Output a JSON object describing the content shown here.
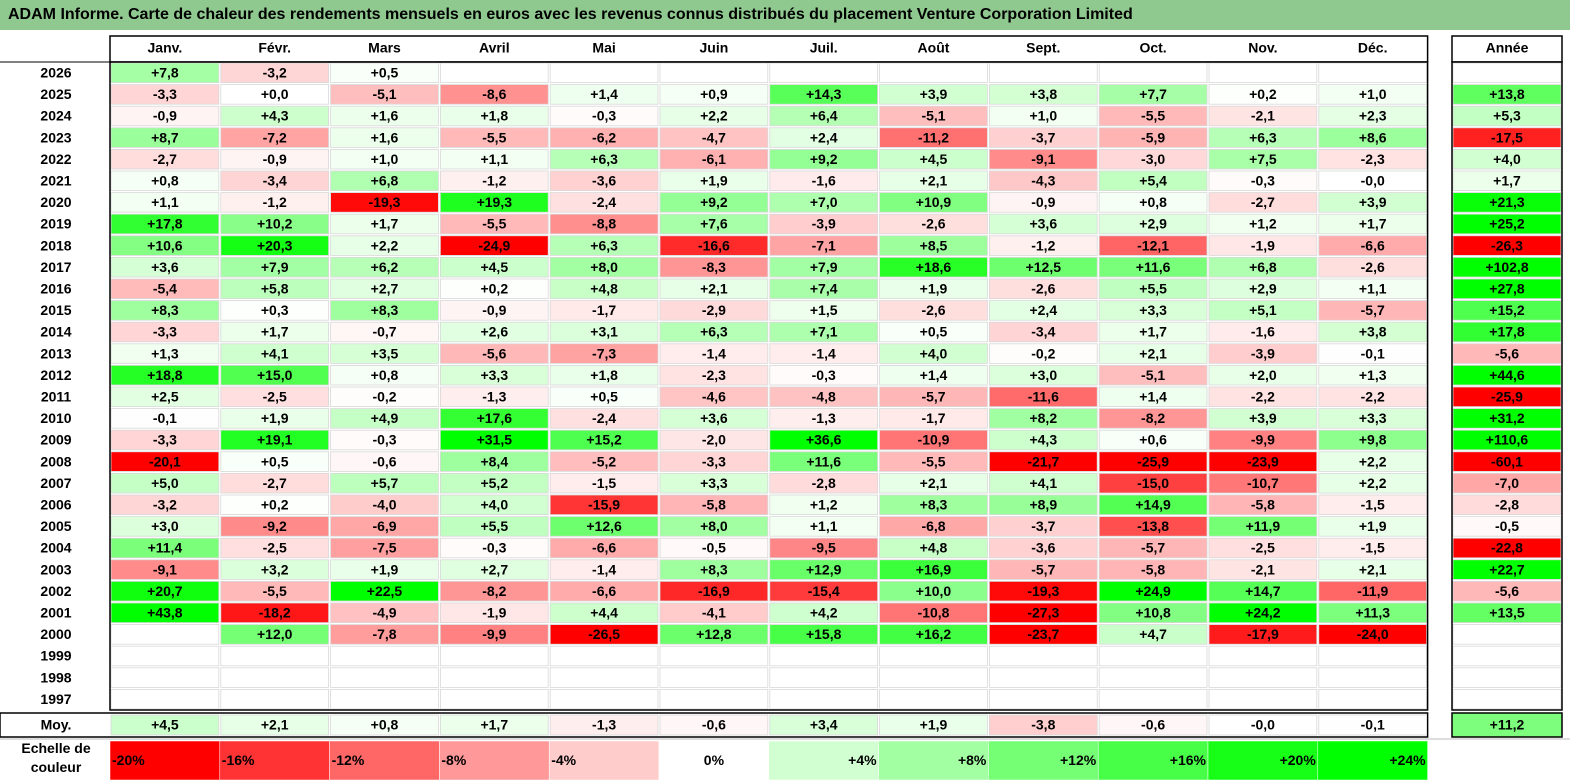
{
  "title": "ADAM Informe. Carte de chaleur des rendements mensuels en euros avec les revenus connus distribués du placement Venture Corporation Limited",
  "chart_data": {
    "type": "heatmap",
    "months": [
      "Janv.",
      "Févr.",
      "Mars",
      "Avril",
      "Mai",
      "Juin",
      "Juil.",
      "Août",
      "Sept.",
      "Oct.",
      "Nov.",
      "Déc."
    ],
    "year_header": "Année",
    "avg_label": "Moy.",
    "scale_label": "Echelle de couleur",
    "rows": [
      {
        "year": "2026",
        "values": [
          7.8,
          -3.2,
          0.5,
          null,
          null,
          null,
          null,
          null,
          null,
          null,
          null,
          null
        ],
        "total": null
      },
      {
        "year": "2025",
        "values": [
          -3.3,
          0.0,
          -5.1,
          -8.6,
          1.4,
          0.9,
          14.3,
          3.9,
          3.8,
          7.7,
          0.2,
          1.0
        ],
        "total": 13.8
      },
      {
        "year": "2024",
        "values": [
          -0.9,
          4.3,
          1.6,
          1.8,
          -0.3,
          2.2,
          6.4,
          -5.1,
          1.0,
          -5.5,
          -2.1,
          2.3
        ],
        "total": 5.3
      },
      {
        "year": "2023",
        "values": [
          8.7,
          -7.2,
          1.6,
          -5.5,
          -6.2,
          -4.7,
          2.4,
          -11.2,
          -3.7,
          -5.9,
          6.3,
          8.6
        ],
        "total": -17.5
      },
      {
        "year": "2022",
        "values": [
          -2.7,
          -0.9,
          1.0,
          1.1,
          6.3,
          -6.1,
          9.2,
          4.5,
          -9.1,
          -3.0,
          7.5,
          -2.3
        ],
        "total": 4.0
      },
      {
        "year": "2021",
        "values": [
          0.8,
          -3.4,
          6.8,
          -1.2,
          -3.6,
          1.9,
          -1.6,
          2.1,
          -4.3,
          5.4,
          -0.3,
          "-0,0"
        ],
        "total": 1.7
      },
      {
        "year": "2020",
        "values": [
          1.1,
          -1.2,
          -19.3,
          19.3,
          -2.4,
          9.2,
          7.0,
          10.9,
          -0.9,
          0.8,
          -2.7,
          3.9
        ],
        "total": 21.3
      },
      {
        "year": "2019",
        "values": [
          17.8,
          10.2,
          1.7,
          -5.5,
          -8.8,
          7.6,
          -3.9,
          -2.6,
          3.6,
          2.9,
          1.2,
          1.7
        ],
        "total": 25.2
      },
      {
        "year": "2018",
        "values": [
          10.6,
          20.3,
          2.2,
          -24.9,
          6.3,
          -16.6,
          -7.1,
          8.5,
          -1.2,
          -12.1,
          -1.9,
          -6.6
        ],
        "total": -26.3
      },
      {
        "year": "2017",
        "values": [
          3.6,
          7.9,
          6.2,
          4.5,
          8.0,
          -8.3,
          7.9,
          18.6,
          12.5,
          11.6,
          6.8,
          -2.6
        ],
        "total": 102.8
      },
      {
        "year": "2016",
        "values": [
          -5.4,
          5.8,
          2.7,
          0.2,
          4.8,
          2.1,
          7.4,
          1.9,
          -2.6,
          5.5,
          2.9,
          1.1
        ],
        "total": 27.8
      },
      {
        "year": "2015",
        "values": [
          8.3,
          0.3,
          8.3,
          -0.9,
          -1.7,
          -2.9,
          1.5,
          -2.6,
          2.4,
          3.3,
          5.1,
          -5.7
        ],
        "total": 15.2
      },
      {
        "year": "2014",
        "values": [
          -3.3,
          1.7,
          -0.7,
          2.6,
          3.1,
          6.3,
          7.1,
          0.5,
          -3.4,
          1.7,
          -1.6,
          3.8
        ],
        "total": 17.8
      },
      {
        "year": "2013",
        "values": [
          1.3,
          4.1,
          3.5,
          -5.6,
          -7.3,
          -1.4,
          -1.4,
          4.0,
          -0.2,
          2.1,
          -3.9,
          -0.1
        ],
        "total": -5.6
      },
      {
        "year": "2012",
        "values": [
          18.8,
          15.0,
          0.8,
          3.3,
          1.8,
          -2.3,
          -0.3,
          1.4,
          3.0,
          -5.1,
          2.0,
          1.3
        ],
        "total": 44.6
      },
      {
        "year": "2011",
        "values": [
          2.5,
          -2.5,
          -0.2,
          -1.3,
          0.5,
          -4.6,
          -4.8,
          -5.7,
          -11.6,
          1.4,
          -2.2,
          -2.2
        ],
        "total": -25.9
      },
      {
        "year": "2010",
        "values": [
          -0.1,
          1.9,
          4.9,
          17.6,
          -2.4,
          3.6,
          -1.3,
          -1.7,
          8.2,
          -8.2,
          3.9,
          3.3
        ],
        "total": 31.2
      },
      {
        "year": "2009",
        "values": [
          -3.3,
          19.1,
          -0.3,
          31.5,
          15.2,
          -2.0,
          36.6,
          -10.9,
          4.3,
          0.6,
          -9.9,
          9.8
        ],
        "total": 110.6
      },
      {
        "year": "2008",
        "values": [
          -20.1,
          0.5,
          -0.6,
          8.4,
          -5.2,
          -3.3,
          11.6,
          -5.5,
          -21.7,
          -25.9,
          -23.9,
          2.2
        ],
        "total": -60.1
      },
      {
        "year": "2007",
        "values": [
          5.0,
          -2.7,
          5.7,
          5.2,
          -1.5,
          3.3,
          -2.8,
          2.1,
          4.1,
          -15.0,
          -10.7,
          2.2
        ],
        "total": -7.0
      },
      {
        "year": "2006",
        "values": [
          -3.2,
          0.2,
          -4.0,
          4.0,
          -15.9,
          -5.8,
          1.2,
          8.3,
          8.9,
          14.9,
          -5.8,
          -1.5
        ],
        "total": -2.8
      },
      {
        "year": "2005",
        "values": [
          3.0,
          -9.2,
          -6.9,
          5.5,
          12.6,
          8.0,
          1.1,
          -6.8,
          -3.7,
          -13.8,
          11.9,
          1.9
        ],
        "total": -0.5
      },
      {
        "year": "2004",
        "values": [
          11.4,
          -2.5,
          -7.5,
          -0.3,
          -6.6,
          -0.5,
          -9.5,
          4.8,
          -3.6,
          -5.7,
          -2.5,
          -1.5
        ],
        "total": -22.8
      },
      {
        "year": "2003",
        "values": [
          -9.1,
          3.2,
          1.9,
          2.7,
          -1.4,
          8.3,
          12.9,
          16.9,
          -5.7,
          -5.8,
          -2.1,
          2.1
        ],
        "total": 22.7
      },
      {
        "year": "2002",
        "values": [
          20.7,
          -5.5,
          22.5,
          -8.2,
          -6.6,
          -16.9,
          -15.4,
          10.0,
          -19.3,
          24.9,
          14.7,
          -11.9
        ],
        "total": -5.6
      },
      {
        "year": "2001",
        "values": [
          43.8,
          -18.2,
          -4.9,
          -1.9,
          4.4,
          -4.1,
          4.2,
          -10.8,
          -27.3,
          10.8,
          24.2,
          11.3
        ],
        "total": 13.5
      },
      {
        "year": "2000",
        "values": [
          null,
          12.0,
          -7.8,
          -9.9,
          -26.5,
          12.8,
          15.8,
          16.2,
          -23.7,
          4.7,
          -17.9,
          -24.0
        ],
        "total": null
      },
      {
        "year": "1999",
        "values": [
          null,
          null,
          null,
          null,
          null,
          null,
          null,
          null,
          null,
          null,
          null,
          null
        ],
        "total": null
      },
      {
        "year": "1998",
        "values": [
          null,
          null,
          null,
          null,
          null,
          null,
          null,
          null,
          null,
          null,
          null,
          null
        ],
        "total": null
      },
      {
        "year": "1997",
        "values": [
          null,
          null,
          null,
          null,
          null,
          null,
          null,
          null,
          null,
          null,
          null,
          null
        ],
        "total": null
      }
    ],
    "averages": [
      4.5,
      2.1,
      0.8,
      1.7,
      -1.3,
      -0.6,
      3.4,
      1.9,
      -3.8,
      -0.6,
      "-0,0",
      -0.1
    ],
    "avg_total": 11.2,
    "scale": [
      "-20%",
      "-16%",
      "-12%",
      "-8%",
      "-4%",
      "0%",
      "+4%",
      "+8%",
      "+12%",
      "+16%",
      "+20%",
      "+24%"
    ],
    "scale_values": [
      -20,
      -16,
      -12,
      -8,
      -4,
      0,
      4,
      8,
      12,
      16,
      20,
      24
    ]
  }
}
